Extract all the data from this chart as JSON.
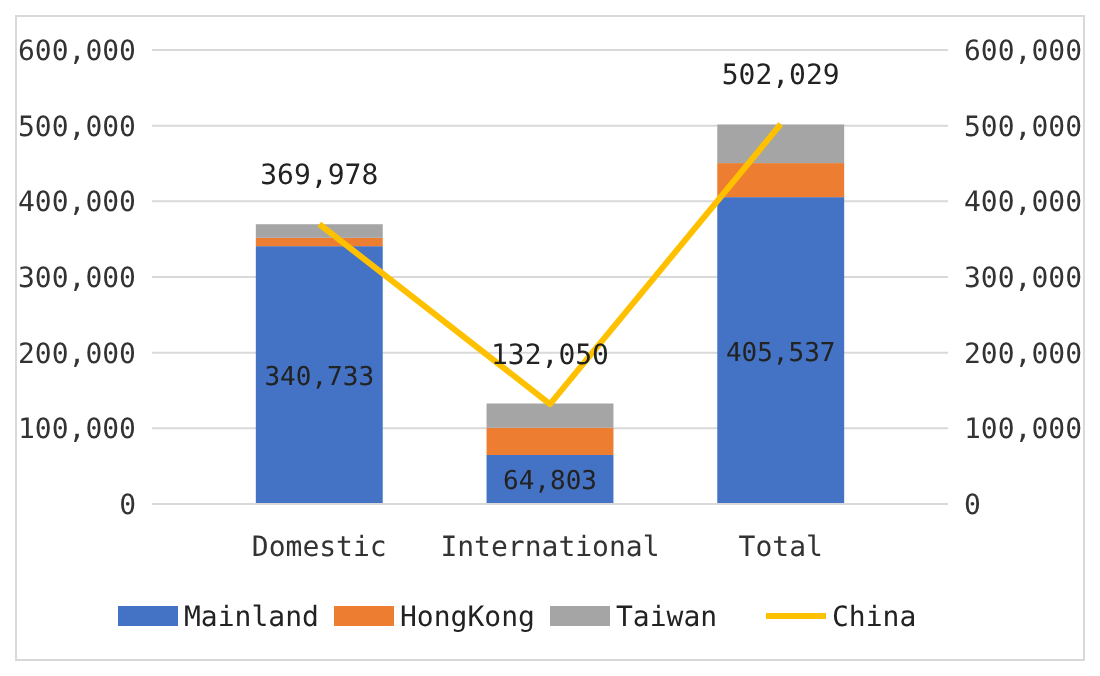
{
  "chart_data": {
    "type": "bar",
    "stacked": true,
    "categories": [
      "Domestic",
      "International",
      "Total"
    ],
    "series": [
      {
        "name": "Mainland",
        "color": "#4472c4",
        "values": [
          340733,
          64803,
          405537
        ],
        "value_labels": [
          "340,733",
          "64,803",
          "405,537"
        ]
      },
      {
        "name": "HongKong",
        "color": "#ed7d31",
        "values": [
          11000,
          36000,
          45000
        ]
      },
      {
        "name": "Taiwan",
        "color": "#a5a5a5",
        "values": [
          18000,
          32000,
          51000
        ]
      },
      {
        "name": "China",
        "type": "line",
        "color": "#ffc000",
        "values": [
          369978,
          132050,
          502029
        ],
        "value_labels": [
          "369,978",
          "132,050",
          "502,029"
        ]
      }
    ],
    "ylim": [
      0,
      600000
    ],
    "yticks": [
      {
        "value": 0,
        "label": "0"
      },
      {
        "value": 100000,
        "label": "100,000"
      },
      {
        "value": 200000,
        "label": "200,000"
      },
      {
        "value": 300000,
        "label": "300,000"
      },
      {
        "value": 400000,
        "label": "400,000"
      },
      {
        "value": 500000,
        "label": "500,000"
      },
      {
        "value": 600000,
        "label": "600,000"
      }
    ],
    "y2lim": [
      0,
      600000
    ],
    "y2ticks": [
      {
        "value": 0,
        "label": "0"
      },
      {
        "value": 100000,
        "label": "100,000"
      },
      {
        "value": 200000,
        "label": "200,000"
      },
      {
        "value": 300000,
        "label": "300,000"
      },
      {
        "value": 400000,
        "label": "400,000"
      },
      {
        "value": 500000,
        "label": "500,000"
      },
      {
        "value": 600000,
        "label": "600,000"
      }
    ],
    "grid": "y",
    "legend": "bottom",
    "marker": "none",
    "line_style": "solid"
  }
}
